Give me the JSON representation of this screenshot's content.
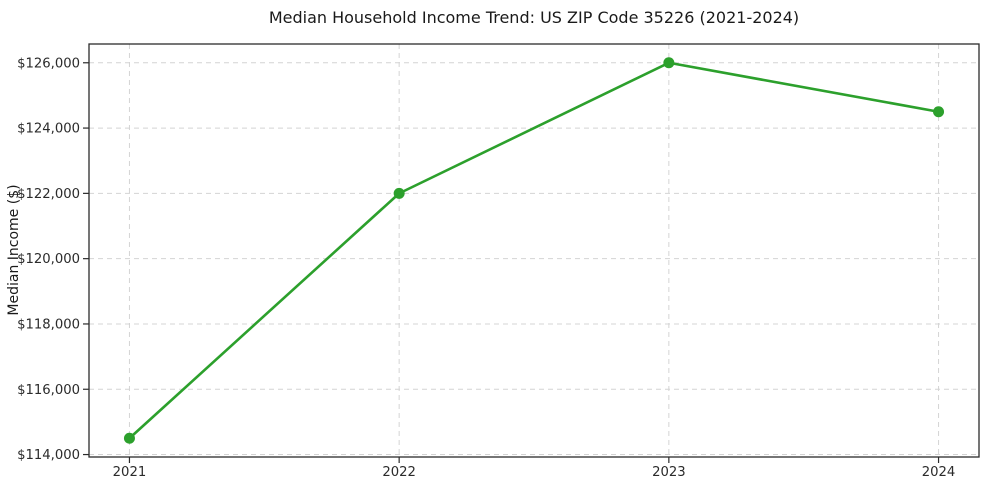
{
  "chart_data": {
    "type": "line",
    "title": "Median Household Income Trend: US ZIP Code 35226 (2021-2024)",
    "xlabel": "",
    "ylabel": "Median Income ($)",
    "x": [
      2021,
      2022,
      2023,
      2024
    ],
    "values": [
      114500,
      122000,
      126000,
      124500
    ],
    "series_name": "Median Household Income",
    "line_color": "#2ca02c",
    "marker": "circle",
    "marker_color": "#2ca02c",
    "grid": true,
    "grid_style": "dashed",
    "grid_color": "#d4d4d4",
    "legend": false,
    "xlim": [
      2020.85,
      2024.15
    ],
    "ylim": [
      113925,
      126575
    ],
    "xticks": [
      2021,
      2022,
      2023,
      2024
    ],
    "xtick_labels": [
      "2021",
      "2022",
      "2023",
      "2024"
    ],
    "yticks": [
      114000,
      116000,
      118000,
      120000,
      122000,
      124000,
      126000
    ],
    "ytick_labels": [
      "$114,000",
      "$116,000",
      "$118,000",
      "$120,000",
      "$122,000",
      "$124,000",
      "$126,000"
    ]
  }
}
